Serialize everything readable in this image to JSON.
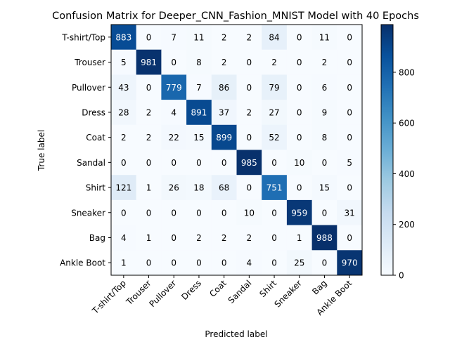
{
  "chart_data": {
    "type": "heatmap",
    "title": "Confusion Matrix for Deeper_CNN_Fashion_MNIST Model with 40 Epochs",
    "xlabel": "Predicted label",
    "ylabel": "True label",
    "categories": [
      "T-shirt/Top",
      "Trouser",
      "Pullover",
      "Dress",
      "Coat",
      "Sandal",
      "Shirt",
      "Sneaker",
      "Bag",
      "Ankle Boot"
    ],
    "matrix": [
      [
        883,
        0,
        7,
        11,
        2,
        2,
        84,
        0,
        11,
        0
      ],
      [
        5,
        981,
        0,
        8,
        2,
        0,
        2,
        0,
        2,
        0
      ],
      [
        43,
        0,
        779,
        7,
        86,
        0,
        79,
        0,
        6,
        0
      ],
      [
        28,
        2,
        4,
        891,
        37,
        2,
        27,
        0,
        9,
        0
      ],
      [
        2,
        2,
        22,
        15,
        899,
        0,
        52,
        0,
        8,
        0
      ],
      [
        0,
        0,
        0,
        0,
        0,
        985,
        0,
        10,
        0,
        5
      ],
      [
        121,
        1,
        26,
        18,
        68,
        0,
        751,
        0,
        15,
        0
      ],
      [
        0,
        0,
        0,
        0,
        0,
        10,
        0,
        959,
        0,
        31
      ],
      [
        4,
        1,
        0,
        2,
        2,
        2,
        0,
        1,
        988,
        0
      ],
      [
        1,
        0,
        0,
        0,
        0,
        4,
        0,
        25,
        0,
        970
      ]
    ],
    "colormap": "Blues",
    "value_range": [
      0,
      988
    ],
    "colorbar_ticks": [
      0,
      200,
      400,
      600,
      800
    ]
  }
}
